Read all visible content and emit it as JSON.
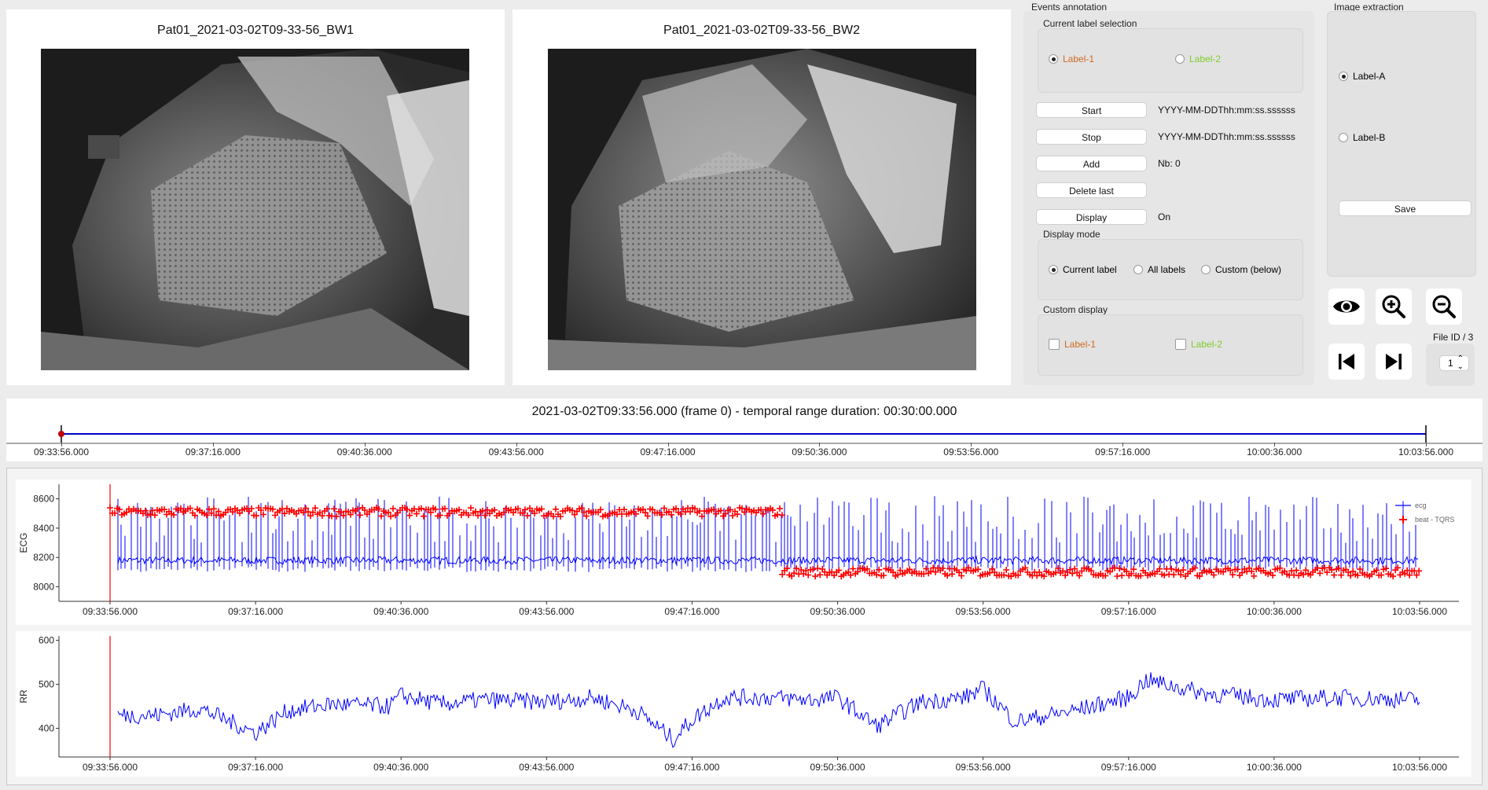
{
  "videos": [
    {
      "title": "Pat01_2021-03-02T09-33-56_BW1"
    },
    {
      "title": "Pat01_2021-03-02T09-33-56_BW2"
    }
  ],
  "events_annotation": {
    "title": "Events annotation",
    "current_label_selection": {
      "title": "Current label selection",
      "options": [
        {
          "label": "Label-1",
          "color": "#d2691e",
          "selected": true
        },
        {
          "label": "Label-2",
          "color": "#7ccd2a",
          "selected": false
        }
      ]
    },
    "start_button": "Start",
    "start_value": "YYYY-MM-DDThh:mm:ss.ssssss",
    "stop_button": "Stop",
    "stop_value": "YYYY-MM-DDThh:mm:ss.ssssss",
    "add_button": "Add",
    "add_value": "Nb: 0",
    "delete_last_button": "Delete last",
    "display_button": "Display",
    "display_value": "On",
    "display_mode": {
      "title": "Display mode",
      "options": [
        {
          "label": "Current label",
          "selected": true
        },
        {
          "label": "All labels",
          "selected": false
        },
        {
          "label": "Custom (below)",
          "selected": false
        }
      ]
    },
    "custom_display": {
      "title": "Custom display",
      "options": [
        {
          "label": "Label-1",
          "color": "#d2691e",
          "checked": false
        },
        {
          "label": "Label-2",
          "color": "#7ccd2a",
          "checked": false
        }
      ]
    }
  },
  "image_extraction": {
    "title": "Image extraction",
    "options": [
      {
        "label": "Label-A",
        "selected": true
      },
      {
        "label": "Label-B",
        "selected": false
      }
    ],
    "save_button": "Save"
  },
  "toolbar": {
    "icons": [
      "eye-icon",
      "zoom-in-icon",
      "zoom-out-icon",
      "skip-to-start-icon",
      "skip-to-end-icon"
    ],
    "file_id_label": "File ID / 3",
    "file_id_value": "1"
  },
  "timeline": {
    "header": "2021-03-02T09:33:56.000 (frame 0) - temporal range duration: 00:30:00.000",
    "ticks": [
      "09:33:56.000",
      "09:37:16.000",
      "09:40:36.000",
      "09:43:56.000",
      "09:47:16.000",
      "09:50:36.000",
      "09:53:56.000",
      "09:57:16.000",
      "10:00:36.000",
      "10:03:56.000"
    ],
    "cursor_position": 0.0
  },
  "chart_data": [
    {
      "type": "line",
      "ylabel": "ECG",
      "ylim": [
        7900,
        8700
      ],
      "yticks": [
        8000,
        8200,
        8400,
        8600
      ],
      "x_ticks": [
        "09:33:56.000",
        "09:37:16.000",
        "09:40:36.000",
        "09:43:56.000",
        "09:47:16.000",
        "09:50:36.000",
        "09:53:56.000",
        "09:57:16.000",
        "10:00:36.000",
        "10:03:56.000"
      ],
      "cursor": "09:33:56.000",
      "series": [
        {
          "name": "ecg",
          "color": "#0000ff",
          "baseline": 8180,
          "spike_peak_approx": 8500
        },
        {
          "name": "beat - TQRS",
          "color": "#ff0000",
          "marker": "+",
          "segments": [
            {
              "from": "09:33:56.000",
              "to": "09:49:20.000",
              "value": 8510
            },
            {
              "from": "09:49:20.000",
              "to": "10:03:56.000",
              "value": 8100
            }
          ]
        }
      ],
      "legend": "top-right",
      "grid": false
    },
    {
      "type": "line",
      "ylabel": "RR",
      "ylim": [
        335,
        610
      ],
      "yticks": [
        400,
        500,
        600
      ],
      "x_ticks": [
        "09:33:56.000",
        "09:37:16.000",
        "09:40:36.000",
        "09:43:56.000",
        "09:47:16.000",
        "09:50:36.000",
        "09:53:56.000",
        "09:57:16.000",
        "10:00:36.000",
        "10:03:56.000"
      ],
      "cursor": "09:33:56.000",
      "series": [
        {
          "name": "RR",
          "color": "#0000ff",
          "x": [
            "09:33:56",
            "09:35:00",
            "09:36:00",
            "09:37:16",
            "09:38:00",
            "09:39:00",
            "09:40:20",
            "09:40:36",
            "09:41:30",
            "09:42:30",
            "09:43:56",
            "09:45:00",
            "09:46:00",
            "09:46:50",
            "09:47:16",
            "09:48:00",
            "09:49:00",
            "09:50:00",
            "09:50:36",
            "09:51:30",
            "09:52:30",
            "09:53:30",
            "09:53:56",
            "09:54:40",
            "09:56:00",
            "09:57:16",
            "09:57:40",
            "09:59:00",
            "10:00:36",
            "10:02:00",
            "10:03:56"
          ],
          "values": [
            430,
            430,
            445,
            390,
            440,
            455,
            450,
            475,
            455,
            465,
            460,
            470,
            440,
            375,
            420,
            470,
            470,
            465,
            470,
            405,
            460,
            470,
            490,
            415,
            440,
            470,
            510,
            480,
            465,
            470,
            465
          ]
        }
      ],
      "legend": "none",
      "grid": false
    }
  ]
}
